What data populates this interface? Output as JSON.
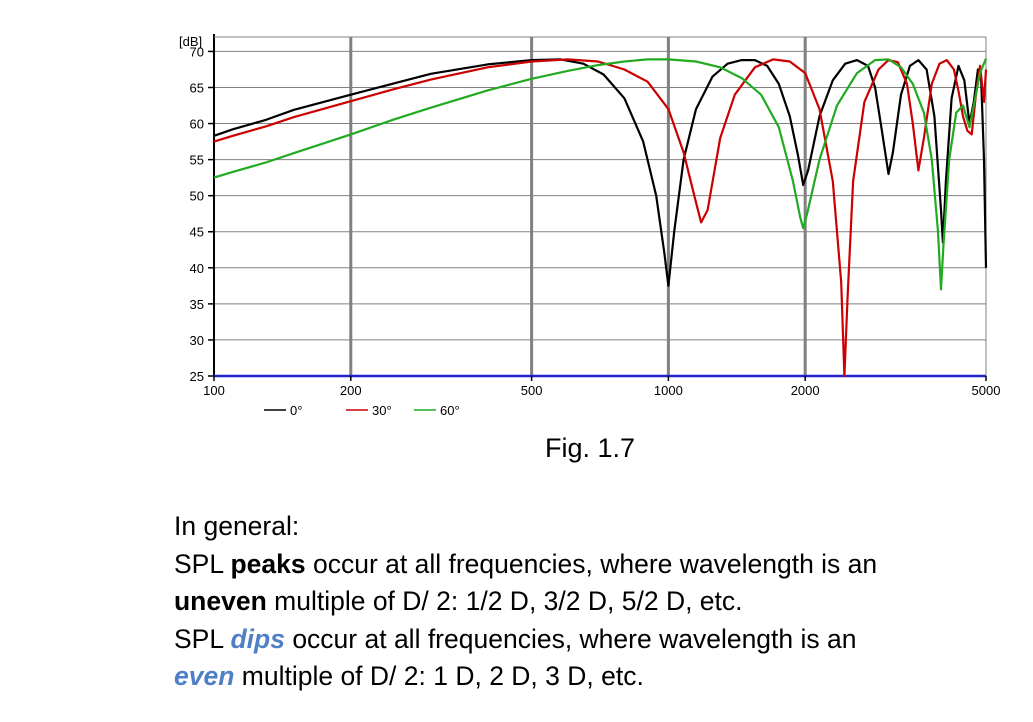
{
  "chart_data": {
    "type": "line",
    "x_scale": "log",
    "xlim": [
      100,
      5000
    ],
    "ylim": [
      25,
      72
    ],
    "ylabel": "[dB]",
    "y_ticks": [
      25,
      30,
      35,
      40,
      45,
      50,
      55,
      60,
      65,
      70
    ],
    "x_ticks": [
      100,
      200,
      500,
      1000,
      2000,
      5000
    ],
    "x_grid": [
      200,
      500,
      1000,
      2000
    ],
    "grid": true,
    "legend": "bottom-left",
    "series": [
      {
        "name": "0°",
        "color": "#000000",
        "points": [
          [
            100,
            58.3
          ],
          [
            110,
            59.2
          ],
          [
            130,
            60.5
          ],
          [
            150,
            61.9
          ],
          [
            200,
            64.0
          ],
          [
            250,
            65.6
          ],
          [
            300,
            66.9
          ],
          [
            400,
            68.2
          ],
          [
            500,
            68.8
          ],
          [
            580,
            68.9
          ],
          [
            650,
            68.3
          ],
          [
            720,
            66.8
          ],
          [
            800,
            63.5
          ],
          [
            880,
            57.5
          ],
          [
            940,
            50.0
          ],
          [
            980,
            42.0
          ],
          [
            1000,
            37.5
          ],
          [
            1030,
            45.0
          ],
          [
            1080,
            55.0
          ],
          [
            1150,
            62.0
          ],
          [
            1250,
            66.5
          ],
          [
            1350,
            68.3
          ],
          [
            1450,
            68.8
          ],
          [
            1550,
            68.8
          ],
          [
            1650,
            68.0
          ],
          [
            1750,
            65.5
          ],
          [
            1850,
            61.0
          ],
          [
            1930,
            55.5
          ],
          [
            1980,
            51.5
          ],
          [
            2030,
            53.5
          ],
          [
            2150,
            61.0
          ],
          [
            2300,
            66.0
          ],
          [
            2450,
            68.3
          ],
          [
            2600,
            68.8
          ],
          [
            2750,
            68.0
          ],
          [
            2850,
            65.0
          ],
          [
            2950,
            59.0
          ],
          [
            3050,
            53.0
          ],
          [
            3120,
            56.0
          ],
          [
            3250,
            64.0
          ],
          [
            3400,
            68.0
          ],
          [
            3550,
            68.8
          ],
          [
            3700,
            67.5
          ],
          [
            3850,
            61.0
          ],
          [
            3980,
            48.0
          ],
          [
            4020,
            43.5
          ],
          [
            4080,
            52.0
          ],
          [
            4200,
            63.5
          ],
          [
            4350,
            68.0
          ],
          [
            4480,
            66.0
          ],
          [
            4600,
            60.0
          ],
          [
            4700,
            63.0
          ],
          [
            4800,
            67.5
          ],
          [
            4880,
            66.0
          ],
          [
            4950,
            55.0
          ],
          [
            5000,
            40.0
          ]
        ]
      },
      {
        "name": "30°",
        "color": "#cc0000",
        "points": [
          [
            100,
            57.5
          ],
          [
            110,
            58.3
          ],
          [
            130,
            59.6
          ],
          [
            150,
            60.9
          ],
          [
            200,
            63.1
          ],
          [
            250,
            64.8
          ],
          [
            300,
            66.1
          ],
          [
            400,
            67.8
          ],
          [
            500,
            68.6
          ],
          [
            600,
            68.9
          ],
          [
            700,
            68.6
          ],
          [
            800,
            67.5
          ],
          [
            900,
            65.8
          ],
          [
            1000,
            62.0
          ],
          [
            1080,
            56.0
          ],
          [
            1140,
            50.0
          ],
          [
            1180,
            46.3
          ],
          [
            1220,
            48.0
          ],
          [
            1300,
            58.0
          ],
          [
            1400,
            64.0
          ],
          [
            1550,
            67.8
          ],
          [
            1700,
            68.9
          ],
          [
            1850,
            68.6
          ],
          [
            2000,
            67.0
          ],
          [
            2150,
            62.0
          ],
          [
            2300,
            52.0
          ],
          [
            2400,
            38.0
          ],
          [
            2440,
            25.0
          ],
          [
            2480,
            36.0
          ],
          [
            2550,
            52.0
          ],
          [
            2700,
            63.0
          ],
          [
            2900,
            67.5
          ],
          [
            3050,
            68.8
          ],
          [
            3200,
            68.5
          ],
          [
            3350,
            65.5
          ],
          [
            3450,
            60.0
          ],
          [
            3550,
            53.5
          ],
          [
            3650,
            58.0
          ],
          [
            3800,
            65.5
          ],
          [
            3950,
            68.3
          ],
          [
            4100,
            68.8
          ],
          [
            4250,
            67.5
          ],
          [
            4350,
            64.5
          ],
          [
            4450,
            61.0
          ],
          [
            4550,
            59.0
          ],
          [
            4650,
            58.5
          ],
          [
            4750,
            64.0
          ],
          [
            4850,
            68.0
          ],
          [
            4950,
            63.0
          ],
          [
            5000,
            67.5
          ]
        ]
      },
      {
        "name": "60°",
        "color": "#22aa22",
        "points": [
          [
            100,
            52.5
          ],
          [
            110,
            53.3
          ],
          [
            130,
            54.6
          ],
          [
            150,
            55.9
          ],
          [
            200,
            58.5
          ],
          [
            250,
            60.6
          ],
          [
            300,
            62.2
          ],
          [
            400,
            64.6
          ],
          [
            500,
            66.2
          ],
          [
            600,
            67.3
          ],
          [
            700,
            68.1
          ],
          [
            800,
            68.6
          ],
          [
            900,
            68.9
          ],
          [
            1000,
            68.9
          ],
          [
            1150,
            68.6
          ],
          [
            1300,
            67.8
          ],
          [
            1450,
            66.3
          ],
          [
            1600,
            64.0
          ],
          [
            1750,
            59.5
          ],
          [
            1880,
            52.0
          ],
          [
            1950,
            47.0
          ],
          [
            1980,
            45.5
          ],
          [
            2020,
            47.5
          ],
          [
            2150,
            55.0
          ],
          [
            2350,
            62.5
          ],
          [
            2600,
            67.0
          ],
          [
            2850,
            68.8
          ],
          [
            3050,
            68.9
          ],
          [
            3250,
            67.8
          ],
          [
            3450,
            65.5
          ],
          [
            3650,
            61.5
          ],
          [
            3800,
            55.0
          ],
          [
            3920,
            45.0
          ],
          [
            3980,
            37.0
          ],
          [
            4030,
            43.0
          ],
          [
            4150,
            55.0
          ],
          [
            4300,
            61.5
          ],
          [
            4450,
            62.5
          ],
          [
            4600,
            59.5
          ],
          [
            4700,
            62.5
          ],
          [
            4850,
            67.0
          ],
          [
            5000,
            69.0
          ]
        ]
      }
    ]
  },
  "caption": "Fig. 1.7",
  "text": {
    "line1": "In general:",
    "line2_pre": "SPL ",
    "line2_bold": "peaks",
    "line2_post": " occur at all frequencies, where wavelength is an",
    "line3_bold": "uneven",
    "line3_post": " multiple of D/ 2: 1/2 D, 3/2 D, 5/2 D, etc.",
    "line4_pre": "SPL ",
    "line4_blue": "dips",
    "line4_post": " occur at all frequencies, where wavelength is an",
    "line5_blue": "even",
    "line5_post": " multiple of D/ 2: 1 D, 2 D, 3 D, etc."
  },
  "colors": {
    "axis": "#000000",
    "grid": "#808080",
    "baseline": "#2222cc",
    "emphasis": "#4f7fc6"
  }
}
